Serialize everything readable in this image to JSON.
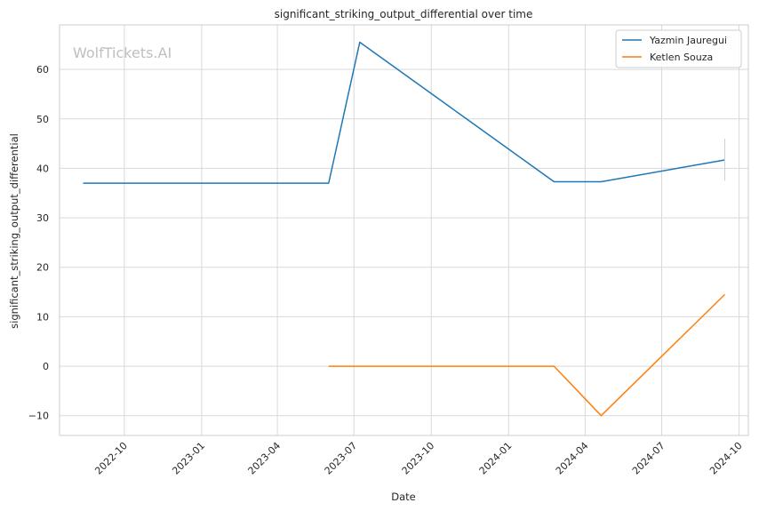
{
  "chart_data": {
    "type": "line",
    "title": "significant_striking_output_differential over time",
    "xlabel": "Date",
    "ylabel": "significant_striking_output_differential",
    "watermark": "WolfTickets.AI",
    "x_range": [
      "2022-07-16",
      "2024-10-12"
    ],
    "y_range": [
      -14,
      69
    ],
    "x_ticks": [
      "2022-10",
      "2023-01",
      "2023-04",
      "2023-07",
      "2023-10",
      "2024-01",
      "2024-04",
      "2024-07",
      "2024-10"
    ],
    "y_ticks": [
      "−10",
      "0",
      "10",
      "20",
      "30",
      "40",
      "50",
      "60"
    ],
    "y_tick_values": [
      -10,
      0,
      10,
      20,
      30,
      40,
      50,
      60
    ],
    "grid": true,
    "legend_position": "top-right",
    "series": [
      {
        "name": "Yazmin Jauregui",
        "color": "#1f77b4",
        "x": [
          "2022-08-13",
          "2023-06-01",
          "2023-07-08",
          "2024-02-24",
          "2024-04-20",
          "2024-09-14"
        ],
        "y": [
          37.0,
          37.0,
          65.5,
          37.3,
          37.3,
          41.7
        ],
        "error_bar": {
          "x": "2024-09-14",
          "low": 37.5,
          "high": 46.0
        }
      },
      {
        "name": "Ketlen Souza",
        "color": "#ff7f0e",
        "x": [
          "2023-06-01",
          "2024-02-24",
          "2024-04-20",
          "2024-09-14"
        ],
        "y": [
          0.0,
          0.0,
          -10.0,
          14.5
        ]
      }
    ]
  }
}
